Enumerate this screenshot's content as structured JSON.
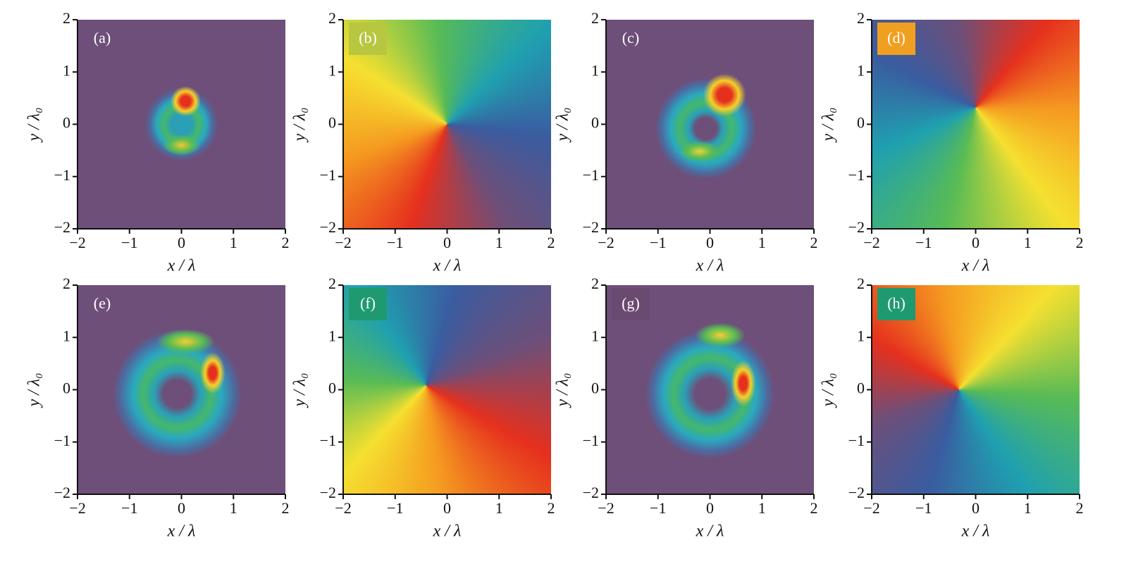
{
  "chart_data": [
    {
      "type": "heatmap",
      "panel_label": "(a)",
      "xlabel": "x / λ",
      "ylabel": "y / λ₀",
      "xlim": [
        -2,
        2
      ],
      "ylim": [
        -2,
        2
      ],
      "xticks": [
        {
          "value": -2,
          "label": "−2"
        },
        {
          "value": -1,
          "label": "−1"
        },
        0,
        1,
        2
      ],
      "yticks": [
        {
          "value": -2,
          "label": "−2"
        },
        {
          "value": -1,
          "label": "−1"
        },
        0,
        1,
        2
      ]
    },
    {
      "type": "heatmap",
      "panel_label": "(b)",
      "xlabel": "x / λ",
      "ylabel": "y / λ₀",
      "xlim": [
        -2,
        2
      ],
      "ylim": [
        -2,
        2
      ],
      "xticks": [
        {
          "value": -2,
          "label": "−2"
        },
        {
          "value": -1,
          "label": "−1"
        },
        0,
        1,
        2
      ],
      "yticks": [
        {
          "value": -2,
          "label": "−2"
        },
        {
          "value": -1,
          "label": "−1"
        },
        0,
        1,
        2
      ]
    },
    {
      "type": "heatmap",
      "panel_label": "(c)",
      "xlabel": "x / λ",
      "ylabel": "y / λ₀",
      "xlim": [
        -2,
        2
      ],
      "ylim": [
        -2,
        2
      ],
      "xticks": [
        {
          "value": -2,
          "label": "−2"
        },
        {
          "value": -1,
          "label": "−1"
        },
        0,
        1,
        2
      ],
      "yticks": [
        {
          "value": -2,
          "label": "−2"
        },
        {
          "value": -1,
          "label": "−1"
        },
        0,
        1,
        2
      ]
    },
    {
      "type": "heatmap",
      "panel_label": "(d)",
      "xlabel": "x / λ",
      "ylabel": "y / λ₀",
      "xlim": [
        -2,
        2
      ],
      "ylim": [
        -2,
        2
      ],
      "xticks": [
        {
          "value": -2,
          "label": "−2"
        },
        {
          "value": -1,
          "label": "−1"
        },
        0,
        1,
        2
      ],
      "yticks": [
        {
          "value": -2,
          "label": "−2"
        },
        {
          "value": -1,
          "label": "−1"
        },
        0,
        1,
        2
      ]
    },
    {
      "type": "heatmap",
      "panel_label": "(e)",
      "xlabel": "x / λ",
      "ylabel": "y / λ₀",
      "xlim": [
        -2,
        2
      ],
      "ylim": [
        -2,
        2
      ],
      "xticks": [
        {
          "value": -2,
          "label": "−2"
        },
        {
          "value": -1,
          "label": "−1"
        },
        0,
        1,
        2
      ],
      "yticks": [
        {
          "value": -2,
          "label": "−2"
        },
        {
          "value": -1,
          "label": "−1"
        },
        0,
        1,
        2
      ]
    },
    {
      "type": "heatmap",
      "panel_label": "(f)",
      "xlabel": "x / λ",
      "ylabel": "y / λ₀",
      "xlim": [
        -2,
        2
      ],
      "ylim": [
        -2,
        2
      ],
      "xticks": [
        {
          "value": -2,
          "label": "−2"
        },
        {
          "value": -1,
          "label": "−1"
        },
        0,
        1,
        2
      ],
      "yticks": [
        {
          "value": -2,
          "label": "−2"
        },
        {
          "value": -1,
          "label": "−1"
        },
        0,
        1,
        2
      ]
    },
    {
      "type": "heatmap",
      "panel_label": "(g)",
      "xlabel": "x / λ",
      "ylabel": "y / λ₀",
      "xlim": [
        -2,
        2
      ],
      "ylim": [
        -2,
        2
      ],
      "xticks": [
        {
          "value": -2,
          "label": "−2"
        },
        {
          "value": -1,
          "label": "−1"
        },
        0,
        1,
        2
      ],
      "yticks": [
        {
          "value": -2,
          "label": "−2"
        },
        {
          "value": -1,
          "label": "−1"
        },
        0,
        1,
        2
      ]
    },
    {
      "type": "heatmap",
      "panel_label": "(h)",
      "xlabel": "x / λ",
      "ylabel": "y / λ₀",
      "xlim": [
        -2,
        2
      ],
      "ylim": [
        -2,
        2
      ],
      "xticks": [
        {
          "value": -2,
          "label": "−2"
        },
        {
          "value": -1,
          "label": "−1"
        },
        0,
        1,
        2
      ],
      "yticks": [
        {
          "value": -2,
          "label": "−2"
        },
        {
          "value": -1,
          "label": "−1"
        },
        0,
        1,
        2
      ]
    }
  ]
}
